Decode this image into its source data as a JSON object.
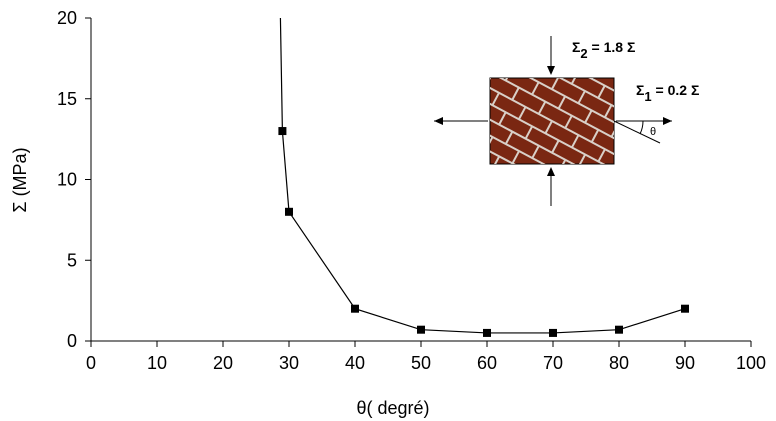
{
  "chart_data": {
    "type": "line",
    "xlabel": "θ( degré)",
    "ylabel": "Σ (MPa)",
    "xlim": [
      0,
      100
    ],
    "ylim": [
      0,
      20
    ],
    "xticks": [
      "0",
      "10",
      "20",
      "30",
      "40",
      "50",
      "60",
      "70",
      "80",
      "90",
      "100"
    ],
    "yticks": [
      "0",
      "5",
      "10",
      "15",
      "20"
    ],
    "grid": false,
    "marker": "square",
    "line_color": "#000000",
    "series": [
      {
        "x": [
          28.7,
          29,
          30,
          40,
          50,
          60,
          70,
          80,
          90
        ],
        "y": [
          20,
          13,
          8,
          2,
          0.7,
          0.5,
          0.5,
          0.7,
          2
        ],
        "markers_at": [
          29,
          30,
          40,
          50,
          60,
          70,
          80,
          90
        ]
      }
    ],
    "inset": {
      "sigma2_label": "Σ",
      "sigma2_sub": "2",
      "sigma2_value": " = 1.8 Σ",
      "sigma1_label": "Σ",
      "sigma1_sub": "1",
      "sigma1_value": " = 0.2 Σ",
      "theta_label": "θ",
      "brick_color": "#7a2712",
      "mortar_color": "#d9d0c8"
    }
  }
}
